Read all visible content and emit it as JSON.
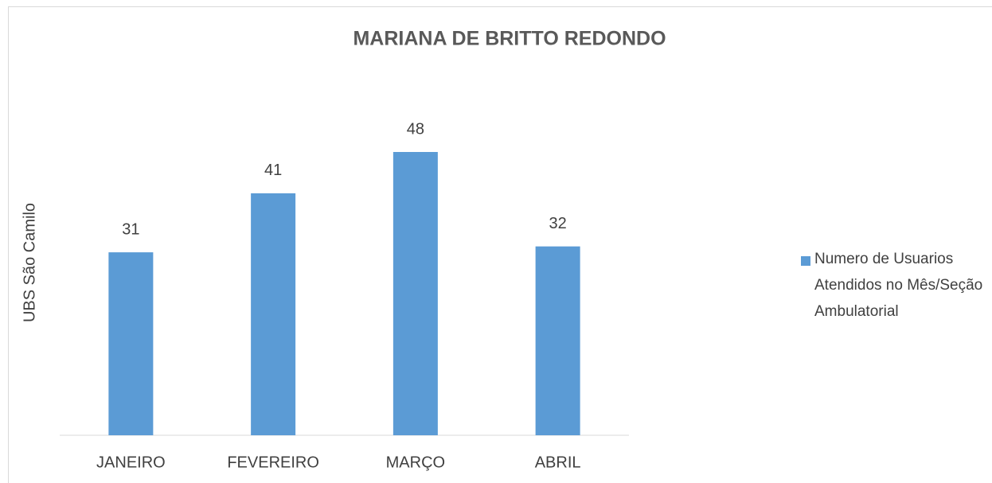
{
  "chart_data": {
    "type": "bar",
    "title": "MARIANA DE BRITTO REDONDO",
    "y_label": "UBS São Camilo",
    "categories": [
      "JANEIRO",
      "FEVEREIRO",
      "MARÇO",
      "ABRIL"
    ],
    "series": [
      {
        "name": "Numero de Usuarios Atendidos no Mês/Seção Ambulatorial",
        "color": "#5b9bd5",
        "values": [
          31,
          41,
          48,
          32
        ]
      }
    ],
    "ylim": [
      0,
      60
    ],
    "legend": "right"
  }
}
